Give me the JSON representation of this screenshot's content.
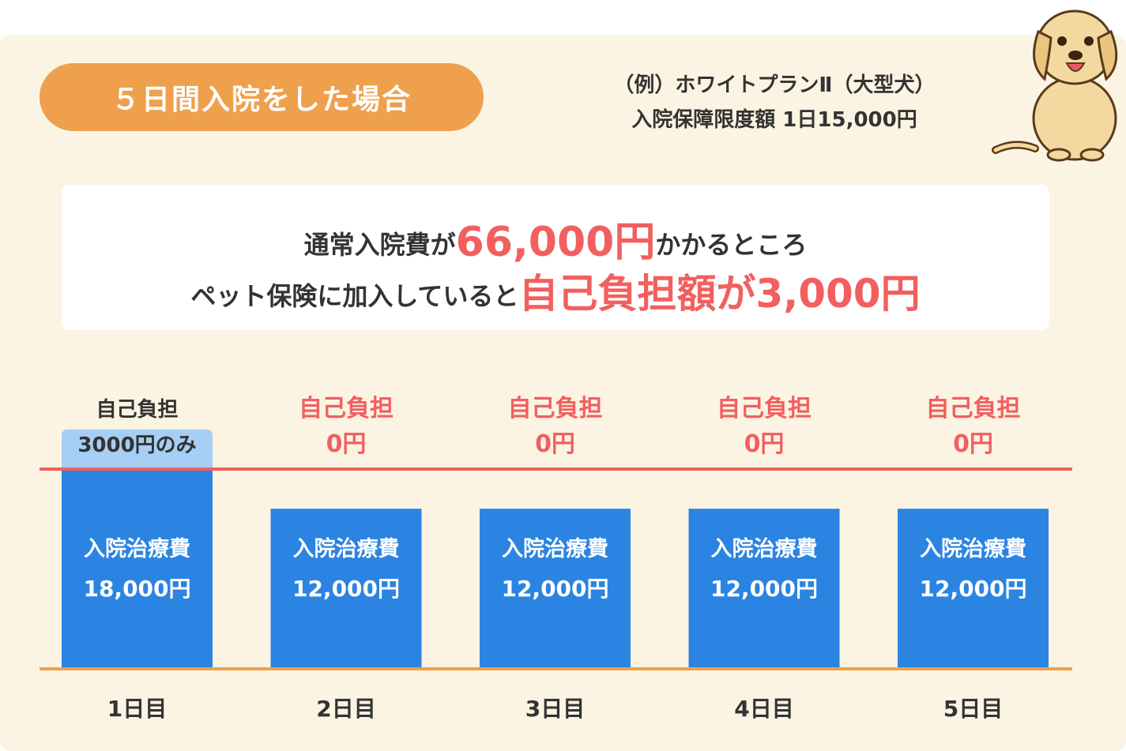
{
  "header": {
    "title": "５日間入院をした場合",
    "plan_line1": "（例）ホワイトプランⅡ（大型犬）",
    "plan_line2": "入院保障限度額 1日15,000円"
  },
  "message": {
    "line1_pre": "通常入院費が",
    "line1_amount": "66,000円",
    "line1_post": "かかるところ",
    "line2_pre": "ペット保険に加入していると",
    "line2_highlight": "自己負担額が3,000円"
  },
  "colors": {
    "panel": "#fcf4e3",
    "pill": "#eea04d",
    "bar": "#2b84e1",
    "self_pay": "#a7cef4",
    "limit_line": "#f25f5f",
    "base_line": "#eea04d",
    "highlight_text": "#f25f5f"
  },
  "chart_data": {
    "type": "bar",
    "stacked": true,
    "categories": [
      "1日目",
      "2日目",
      "3日目",
      "4日目",
      "5日目"
    ],
    "values": [
      18000,
      12000,
      12000,
      12000,
      12000
    ],
    "limit_per_day": 15000,
    "self_pay_values": [
      3000,
      0,
      0,
      0,
      0
    ],
    "bar_label_title": [
      "入院治療費",
      "入院治療費",
      "入院治療費",
      "入院治療費",
      "入院治療費"
    ],
    "bar_label_value": [
      "18,000円",
      "12,000円",
      "12,000円",
      "12,000円",
      "12,000円"
    ],
    "top_label_title": [
      "自己負担",
      "自己負担",
      "自己負担",
      "自己負担",
      "自己負担"
    ],
    "top_label_value": [
      "3000円のみ",
      "0円",
      "0円",
      "0円",
      "0円"
    ],
    "legend": "none",
    "grid": false
  }
}
